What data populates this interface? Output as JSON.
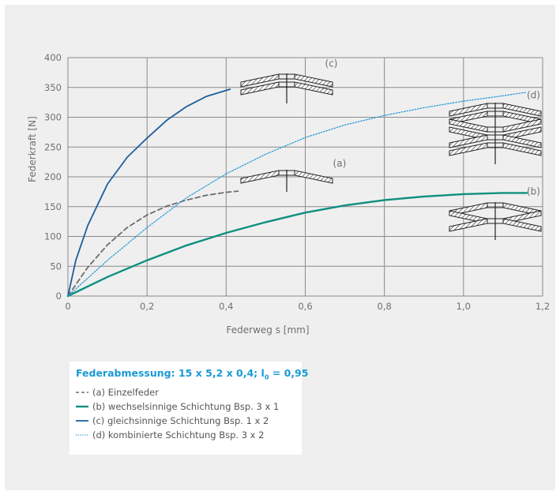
{
  "chart_data": {
    "type": "line",
    "xlabel": "Federweg s [mm]",
    "ylabel": "Federkraft [N]",
    "xlim": [
      0,
      1.2
    ],
    "ylim": [
      0,
      400
    ],
    "x_ticks": [
      0,
      0.2,
      0.4,
      0.6,
      0.8,
      1.0,
      1.2
    ],
    "x_tick_labels": [
      "0",
      "0,2",
      "0,4",
      "0,6",
      "0,8",
      "1,0",
      "1,2"
    ],
    "y_ticks": [
      0,
      50,
      100,
      150,
      200,
      250,
      300,
      350,
      400
    ],
    "y_tick_labels": [
      "0",
      "50",
      "100",
      "150",
      "200",
      "250",
      "300",
      "350",
      "400"
    ],
    "grid": true,
    "series": [
      {
        "name": "(a) Einzelfeder",
        "tag": "(a)",
        "color": "#6d6d6d",
        "style": "dashed",
        "x": [
          0,
          0.05,
          0.1,
          0.15,
          0.2,
          0.25,
          0.3,
          0.35,
          0.4,
          0.43
        ],
        "y": [
          0,
          48,
          86,
          115,
          136,
          151,
          161,
          169,
          174,
          176
        ]
      },
      {
        "name": "(b) wechselsinnige Schichtung Bsp. 3 x 1",
        "tag": "(b)",
        "color": "#0e8f7f",
        "style": "solid",
        "x": [
          0,
          0.1,
          0.2,
          0.3,
          0.4,
          0.5,
          0.6,
          0.7,
          0.8,
          0.9,
          1.0,
          1.1,
          1.16
        ],
        "y": [
          0,
          32,
          60,
          85,
          106,
          124,
          140,
          152,
          161,
          167,
          171,
          173,
          173
        ]
      },
      {
        "name": "(c) gleichsinnige Schichtung Bsp. 1 x 2",
        "tag": "(c)",
        "color": "#1b5f9e",
        "style": "solid",
        "x": [
          0,
          0.02,
          0.05,
          0.1,
          0.15,
          0.2,
          0.25,
          0.3,
          0.35,
          0.41
        ],
        "y": [
          0,
          60,
          118,
          188,
          233,
          265,
          295,
          318,
          335,
          347
        ]
      },
      {
        "name": "(d) kombinierte Schichtung Bsp. 3 x 2",
        "tag": "(d)",
        "color": "#2a9bd6",
        "style": "dotted",
        "x": [
          0,
          0.1,
          0.2,
          0.3,
          0.4,
          0.5,
          0.6,
          0.7,
          0.8,
          0.9,
          1.0,
          1.1,
          1.16
        ],
        "y": [
          0,
          60,
          115,
          165,
          205,
          238,
          266,
          287,
          303,
          316,
          327,
          336,
          342
        ]
      }
    ],
    "annotations": [
      {
        "text": "(c)",
        "x": 0.65,
        "y": 385
      },
      {
        "text": "(d)",
        "x": 1.16,
        "y": 332
      },
      {
        "text": "(a)",
        "x": 0.67,
        "y": 217
      },
      {
        "text": "(b)",
        "x": 1.16,
        "y": 170
      }
    ],
    "legend_placement": "bottom-left"
  },
  "legend": {
    "title_main": "Federabmessung: 15 x 5,2 x 0,4; l",
    "title_sub": "0",
    "title_tail": " = 0,95",
    "items": [
      {
        "label": "(a) Einzelfeder",
        "style": "dashed",
        "color": "#6d6d6d"
      },
      {
        "label": "(b) wechselsinnige Schichtung Bsp. 3 x 1",
        "style": "solid",
        "color": "#0e8f7f"
      },
      {
        "label": "(c) gleichsinnige Schichtung Bsp. 1 x 2",
        "style": "solid",
        "color": "#1b5f9e"
      },
      {
        "label": "(d) kombinierte Schichtung Bsp. 3 x 2",
        "style": "dotted",
        "color": "#2a9bd6"
      }
    ]
  }
}
